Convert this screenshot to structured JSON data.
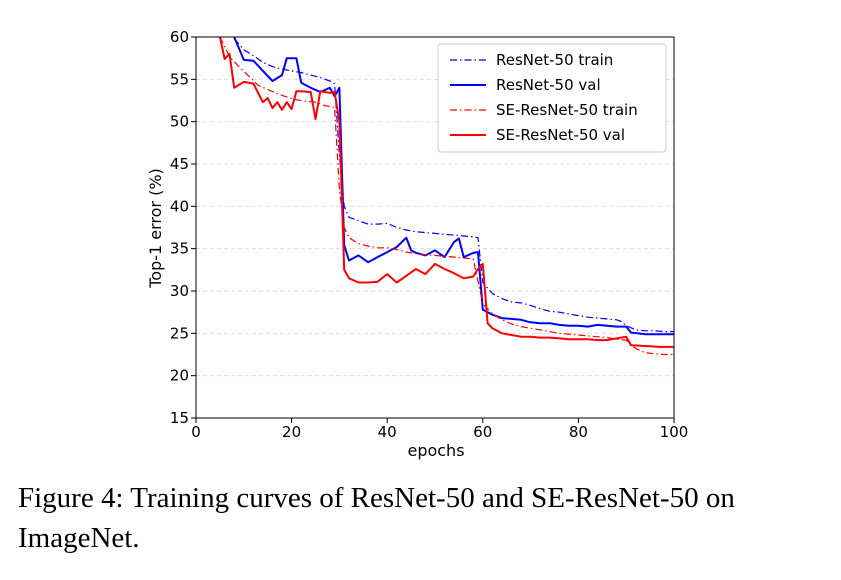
{
  "caption": "Figure 4: Training curves of ResNet-50 and SE-ResNet-50 on ImageNet.",
  "chart_data": {
    "type": "line",
    "xlabel": "epochs",
    "ylabel": "Top-1 error (%)",
    "xlim": [
      0,
      100
    ],
    "ylim": [
      15,
      60
    ],
    "xticks": [
      0,
      20,
      40,
      60,
      80,
      100
    ],
    "yticks": [
      15,
      20,
      25,
      30,
      35,
      40,
      45,
      50,
      55,
      60
    ],
    "grid": "horizontal dashed",
    "legend_position": "top-right",
    "series": [
      {
        "name": "ResNet-50 train",
        "color": "#0000ff",
        "style": "dashdot",
        "x": [
          8,
          10,
          12,
          14,
          16,
          18,
          20,
          22,
          24,
          26,
          28,
          29,
          30,
          31,
          32,
          34,
          36,
          38,
          40,
          42,
          44,
          46,
          48,
          50,
          52,
          54,
          56,
          58,
          59,
          60,
          62,
          64,
          66,
          68,
          70,
          72,
          74,
          76,
          78,
          80,
          82,
          84,
          86,
          88,
          89,
          90,
          92,
          94,
          96,
          98,
          100
        ],
        "y": [
          59.8,
          58.5,
          57.8,
          57,
          56.5,
          56.2,
          56,
          55.8,
          55.5,
          55.2,
          54.8,
          54.5,
          46,
          40,
          38.7,
          38.3,
          37.9,
          37.9,
          38,
          37.5,
          37.2,
          37,
          36.9,
          36.8,
          36.7,
          36.6,
          36.5,
          36.4,
          36.3,
          31,
          29.7,
          29.1,
          28.7,
          28.6,
          28.3,
          27.9,
          27.6,
          27.5,
          27.3,
          27.1,
          26.9,
          26.8,
          26.7,
          26.6,
          26.4,
          25.9,
          25.4,
          25.3,
          25.3,
          25.2,
          25.2
        ]
      },
      {
        "name": "ResNet-50 val",
        "color": "#0000ff",
        "style": "solid",
        "x": [
          8,
          10,
          12,
          14,
          16,
          18,
          19,
          21,
          22,
          24,
          26,
          28,
          29,
          30,
          31,
          32,
          34,
          36,
          38,
          40,
          42,
          44,
          45,
          46,
          48,
          50,
          52,
          54,
          55,
          56,
          58,
          59,
          60,
          62,
          64,
          66,
          68,
          70,
          72,
          74,
          76,
          78,
          80,
          82,
          84,
          86,
          88,
          90,
          91,
          94,
          97,
          100
        ],
        "y": [
          60,
          57.3,
          57.2,
          56,
          54.8,
          55.5,
          57.5,
          57.5,
          54.6,
          54,
          53.5,
          54,
          53,
          54,
          35.4,
          33.6,
          34.2,
          33.4,
          34,
          34.6,
          35.2,
          36.3,
          34.8,
          34.5,
          34.2,
          34.8,
          34,
          35.8,
          36.2,
          34,
          34.5,
          34.6,
          27.8,
          27.2,
          26.8,
          26.7,
          26.6,
          26.3,
          26.2,
          26.2,
          26,
          25.9,
          25.9,
          25.8,
          26,
          25.9,
          25.8,
          25.8,
          25.1,
          24.9,
          24.9,
          24.9
        ]
      },
      {
        "name": "SE-ResNet-50 train",
        "color": "#ff0000",
        "style": "dashdot",
        "x": [
          5,
          7,
          9,
          11,
          13,
          15,
          17,
          19,
          21,
          23,
          25,
          27,
          29,
          30,
          31,
          32,
          34,
          36,
          38,
          40,
          42,
          44,
          46,
          48,
          50,
          52,
          54,
          56,
          58,
          60,
          62,
          64,
          66,
          68,
          70,
          72,
          74,
          76,
          78,
          80,
          82,
          84,
          86,
          88,
          90,
          92,
          94,
          96,
          98,
          100
        ],
        "y": [
          60,
          57.7,
          56.5,
          55.4,
          54.3,
          53.8,
          53.3,
          52.9,
          52.6,
          52.4,
          52.3,
          51.9,
          51.7,
          42,
          37.5,
          36.3,
          35.6,
          35.3,
          35.1,
          35.1,
          34.9,
          34.6,
          34.4,
          34.3,
          34.2,
          34.1,
          34,
          33.9,
          33.8,
          28.5,
          27.3,
          26.6,
          26.1,
          25.8,
          25.6,
          25.4,
          25.2,
          25,
          24.9,
          24.8,
          24.7,
          24.6,
          24.5,
          24.3,
          24.2,
          23.2,
          22.7,
          22.6,
          22.5,
          22.5
        ]
      },
      {
        "name": "SE-ResNet-50 val",
        "color": "#ff0000",
        "style": "solid",
        "x": [
          5,
          6,
          7,
          8,
          10,
          12,
          14,
          15,
          16,
          17,
          18,
          19,
          20,
          21,
          22,
          24,
          25,
          26,
          28,
          29,
          30,
          31,
          32,
          34,
          36,
          38,
          40,
          42,
          44,
          46,
          48,
          50,
          52,
          54,
          56,
          58,
          59,
          60,
          61,
          62,
          64,
          66,
          68,
          70,
          72,
          74,
          76,
          78,
          80,
          82,
          84,
          86,
          88,
          90,
          91,
          94,
          97,
          100
        ],
        "y": [
          60,
          57.4,
          58,
          54,
          54.7,
          54.5,
          52.3,
          52.8,
          51.6,
          52.3,
          51.4,
          52.3,
          51.5,
          53.6,
          53.6,
          53.5,
          50.3,
          53.6,
          53.4,
          53.5,
          50,
          32.5,
          31.5,
          31,
          31,
          31.1,
          32,
          31,
          31.8,
          32.6,
          32,
          33.2,
          32.6,
          32.1,
          31.5,
          31.7,
          32.6,
          33.2,
          26.2,
          25.6,
          25,
          24.8,
          24.6,
          24.6,
          24.5,
          24.5,
          24.4,
          24.3,
          24.3,
          24.3,
          24.2,
          24.2,
          24.4,
          24.6,
          23.6,
          23.5,
          23.4,
          23.4
        ]
      }
    ]
  }
}
